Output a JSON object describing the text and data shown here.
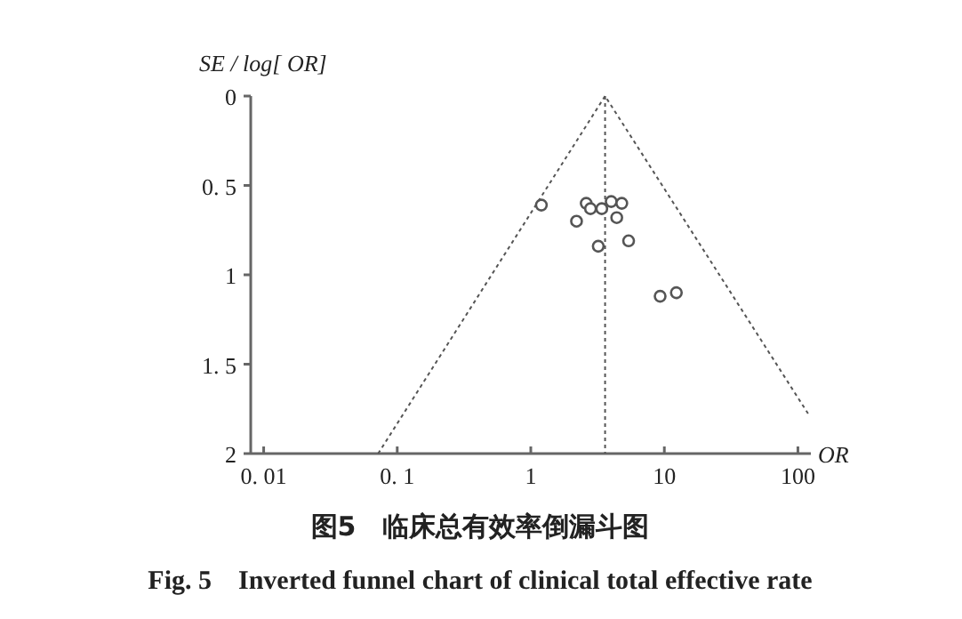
{
  "chart_data": {
    "type": "scatter",
    "title": "图5　临床总有效率倒漏斗图",
    "subtitle": "Fig. 5　Inverted funnel chart of clinical total effective rate",
    "xlabel": "OR",
    "ylabel": "SE / log[ OR]",
    "log": "x",
    "grid": false,
    "xlim": [
      0.008,
      125
    ],
    "xticks": [
      {
        "value": 0.01,
        "label": "0. 01"
      },
      {
        "value": 0.1,
        "label": "0. 1"
      },
      1,
      10,
      100
    ],
    "ylim": [
      2,
      0
    ],
    "yticks": [
      0,
      {
        "value": 0.5,
        "label": "0. 5"
      },
      1,
      {
        "value": 1.5,
        "label": "1. 5"
      },
      2
    ],
    "series": [
      {
        "marker": "circle",
        "color": "#555555",
        "x": [
          1.2,
          2.6,
          2.8,
          3.4,
          4.0,
          4.8,
          2.2,
          4.4,
          3.2,
          5.4,
          9.3,
          12.3
        ],
        "values": [
          0.61,
          0.6,
          0.63,
          0.63,
          0.59,
          0.6,
          0.7,
          0.68,
          0.84,
          0.81,
          1.12,
          1.1
        ]
      },
      {
        "type": "line",
        "marker": "none",
        "color": "#555555",
        "line_style": "dotted",
        "x": [
          0.072,
          3.6,
          120
        ],
        "values": [
          2,
          0,
          1.78
        ]
      }
    ],
    "ref_lines": [
      {
        "axis": "x",
        "value": 3.6,
        "color": "#555555",
        "line_style": "dotted"
      }
    ]
  }
}
